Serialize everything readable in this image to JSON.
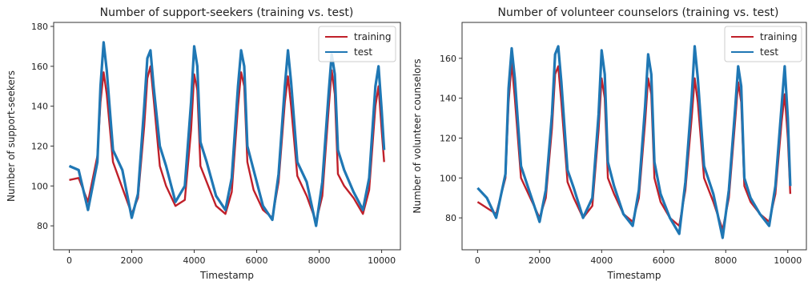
{
  "chart_data": [
    {
      "type": "line",
      "title": "Number of support-seekers (training vs. test)",
      "xlabel": "Timestamp",
      "ylabel": "Number of support-seekers",
      "xlim": [
        -500,
        10600
      ],
      "ylim": [
        68,
        182
      ],
      "xticks": [
        0,
        2000,
        4000,
        6000,
        8000,
        10000
      ],
      "yticks": [
        80,
        100,
        120,
        140,
        160,
        180
      ],
      "grid": false,
      "legend": "top-right",
      "series": [
        {
          "name": "training",
          "color": "#c0202a",
          "x": [
            0,
            300,
            600,
            900,
            1000,
            1100,
            1200,
            1400,
            1700,
            2000,
            2200,
            2400,
            2500,
            2600,
            2700,
            2900,
            3100,
            3400,
            3700,
            3900,
            4000,
            4100,
            4200,
            4400,
            4700,
            5000,
            5200,
            5400,
            5500,
            5600,
            5700,
            5900,
            6200,
            6500,
            6700,
            6900,
            7000,
            7100,
            7300,
            7600,
            7900,
            8100,
            8300,
            8400,
            8500,
            8600,
            8800,
            9100,
            9400,
            9600,
            9800,
            9900,
            10000,
            10080
          ],
          "y": [
            103,
            104,
            92,
            115,
            142,
            157,
            146,
            112,
            99,
            86,
            94,
            130,
            154,
            160,
            144,
            110,
            100,
            90,
            93,
            128,
            156,
            148,
            110,
            102,
            90,
            86,
            97,
            140,
            157,
            150,
            112,
            98,
            88,
            84,
            102,
            142,
            155,
            140,
            105,
            95,
            82,
            95,
            138,
            158,
            146,
            106,
            100,
            94,
            86,
            98,
            140,
            150,
            128,
            112
          ]
        },
        {
          "name": "test",
          "color": "#1f77b4",
          "x": [
            0,
            300,
            600,
            900,
            1000,
            1100,
            1200,
            1400,
            1700,
            2000,
            2200,
            2400,
            2500,
            2600,
            2700,
            2900,
            3100,
            3400,
            3700,
            3900,
            4000,
            4100,
            4200,
            4400,
            4700,
            5000,
            5200,
            5400,
            5500,
            5600,
            5700,
            5900,
            6200,
            6500,
            6700,
            6900,
            7000,
            7100,
            7300,
            7600,
            7900,
            8100,
            8300,
            8400,
            8500,
            8600,
            8800,
            9100,
            9400,
            9600,
            9800,
            9900,
            10000,
            10080
          ],
          "y": [
            110,
            108,
            88,
            112,
            150,
            172,
            158,
            118,
            108,
            84,
            96,
            140,
            164,
            168,
            150,
            120,
            110,
            92,
            100,
            142,
            170,
            160,
            122,
            112,
            95,
            88,
            104,
            150,
            168,
            160,
            120,
            108,
            90,
            83,
            106,
            150,
            168,
            152,
            112,
            102,
            80,
            102,
            146,
            166,
            156,
            118,
            108,
            97,
            88,
            104,
            150,
            160,
            138,
            118
          ]
        }
      ]
    },
    {
      "type": "line",
      "title": "Number of volunteer counselors (training vs. test)",
      "xlabel": "Timestamp",
      "ylabel": "Number of volunteer counselors",
      "xlim": [
        -500,
        10600
      ],
      "ylim": [
        64,
        178
      ],
      "xticks": [
        0,
        2000,
        4000,
        6000,
        8000,
        10000
      ],
      "yticks": [
        80,
        100,
        120,
        140,
        160
      ],
      "grid": false,
      "legend": "top-right",
      "series": [
        {
          "name": "training",
          "color": "#c0202a",
          "x": [
            0,
            300,
            600,
            900,
            1000,
            1100,
            1200,
            1400,
            1700,
            2000,
            2200,
            2400,
            2500,
            2600,
            2700,
            2900,
            3100,
            3400,
            3700,
            3900,
            4000,
            4100,
            4200,
            4400,
            4700,
            5000,
            5200,
            5400,
            5500,
            5600,
            5700,
            5900,
            6200,
            6500,
            6700,
            6900,
            7000,
            7100,
            7300,
            7600,
            7900,
            8100,
            8300,
            8400,
            8500,
            8600,
            8800,
            9100,
            9400,
            9600,
            9800,
            9900,
            10000,
            10080
          ],
          "y": [
            88,
            85,
            82,
            100,
            138,
            158,
            140,
            100,
            90,
            80,
            90,
            125,
            152,
            156,
            138,
            98,
            90,
            80,
            86,
            124,
            150,
            140,
            100,
            92,
            82,
            78,
            90,
            128,
            150,
            142,
            100,
            88,
            80,
            76,
            94,
            130,
            150,
            138,
            100,
            88,
            74,
            90,
            128,
            148,
            138,
            96,
            88,
            82,
            78,
            92,
            128,
            142,
            120,
            92
          ]
        },
        {
          "name": "test",
          "color": "#1f77b4",
          "x": [
            0,
            300,
            600,
            900,
            1000,
            1100,
            1200,
            1400,
            1700,
            2000,
            2200,
            2400,
            2500,
            2600,
            2700,
            2900,
            3100,
            3400,
            3700,
            3900,
            4000,
            4100,
            4200,
            4400,
            4700,
            5000,
            5200,
            5400,
            5500,
            5600,
            5700,
            5900,
            6200,
            6500,
            6700,
            6900,
            7000,
            7100,
            7300,
            7600,
            7900,
            8100,
            8300,
            8400,
            8500,
            8600,
            8800,
            9100,
            9400,
            9600,
            9800,
            9900,
            10000,
            10080
          ],
          "y": [
            95,
            90,
            80,
            102,
            145,
            165,
            150,
            106,
            92,
            78,
            94,
            132,
            162,
            166,
            148,
            104,
            95,
            80,
            90,
            132,
            164,
            152,
            108,
            96,
            82,
            76,
            94,
            136,
            162,
            152,
            108,
            92,
            80,
            72,
            98,
            140,
            166,
            150,
            106,
            92,
            70,
            94,
            134,
            156,
            146,
            100,
            90,
            82,
            76,
            96,
            136,
            156,
            130,
            96
          ]
        }
      ]
    }
  ]
}
